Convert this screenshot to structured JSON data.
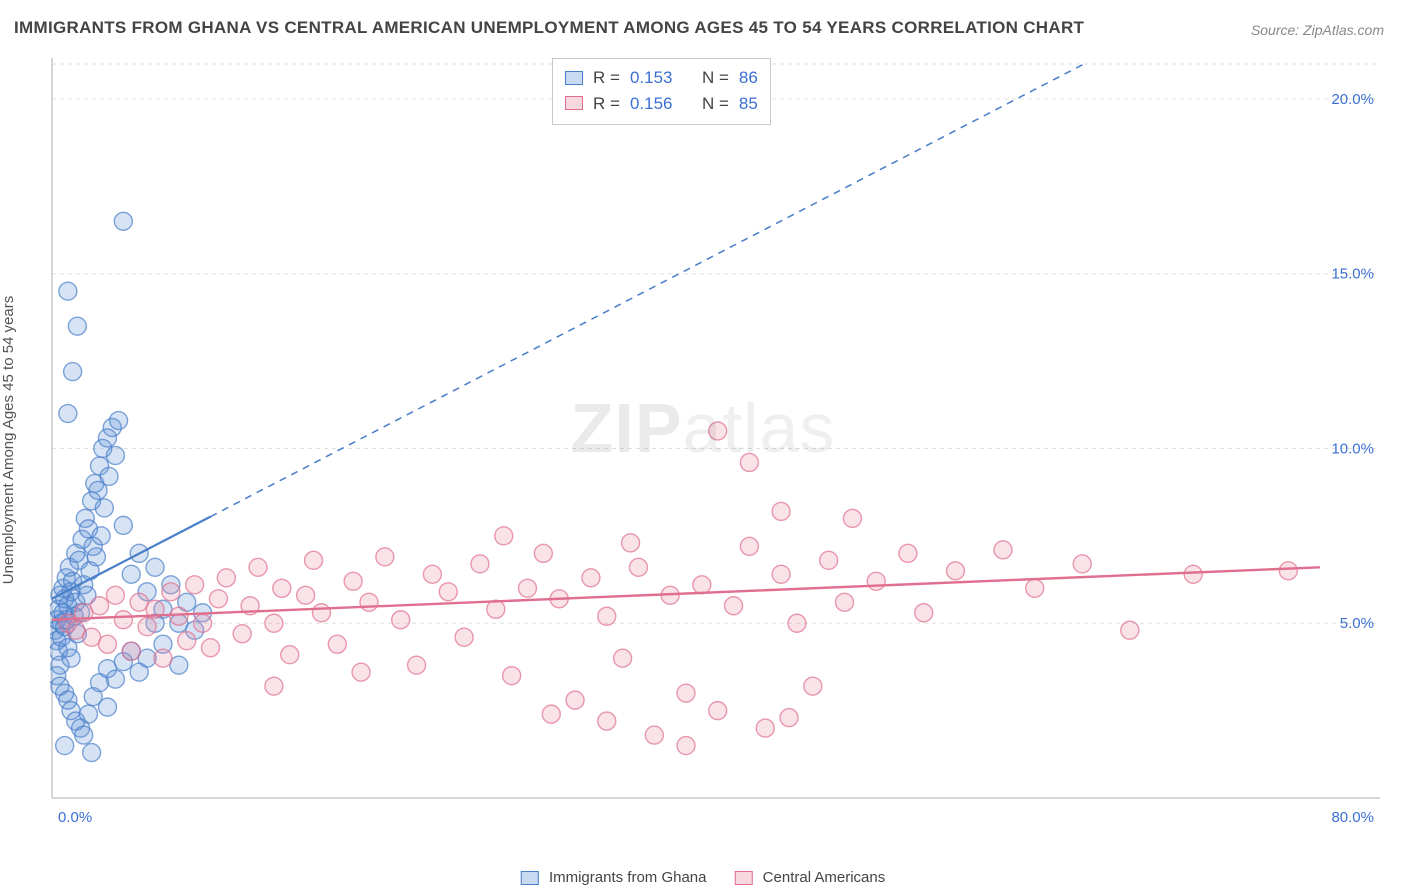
{
  "title": "IMMIGRANTS FROM GHANA VS CENTRAL AMERICAN UNEMPLOYMENT AMONG AGES 45 TO 54 YEARS CORRELATION CHART",
  "source": "Source: ZipAtlas.com",
  "ylabel": "Unemployment Among Ages 45 to 54 years",
  "watermark_a": "ZIP",
  "watermark_b": "atlas",
  "chart": {
    "type": "scatter",
    "background_color": "#ffffff",
    "grid_color": "#e0e0e0",
    "axis_color": "#c9c9c9",
    "tick_label_color": "#3b6fd4",
    "xlim": [
      0,
      80
    ],
    "ylim": [
      0,
      21
    ],
    "y_ticks": [
      5,
      10,
      15,
      20
    ],
    "y_tick_labels": [
      "5.0%",
      "10.0%",
      "15.0%",
      "20.0%"
    ],
    "x_ticks": [
      0,
      80
    ],
    "x_tick_labels": [
      "0.0%",
      "80.0%"
    ],
    "marker_radius": 9,
    "marker_fill_opacity": 0.25,
    "marker_stroke_width": 1.4,
    "series": [
      {
        "name": "Immigrants from Ghana",
        "color": "#5a8fd6",
        "stroke": "#4a7fc9",
        "trend": {
          "x1": 0,
          "y1": 5.7,
          "x2": 80,
          "y2": 24.5,
          "solid_until_x": 10,
          "width": 2.2
        },
        "R": "0.153",
        "N": "86",
        "points": [
          [
            0.2,
            4.8
          ],
          [
            0.3,
            5.1
          ],
          [
            0.3,
            4.5
          ],
          [
            0.4,
            5.4
          ],
          [
            0.4,
            4.2
          ],
          [
            0.5,
            5.8
          ],
          [
            0.5,
            3.8
          ],
          [
            0.6,
            5.0
          ],
          [
            0.6,
            4.6
          ],
          [
            0.7,
            6.0
          ],
          [
            0.7,
            5.3
          ],
          [
            0.8,
            5.7
          ],
          [
            0.8,
            4.9
          ],
          [
            0.9,
            6.3
          ],
          [
            0.9,
            5.1
          ],
          [
            1.0,
            5.5
          ],
          [
            1.0,
            4.3
          ],
          [
            1.1,
            6.6
          ],
          [
            1.2,
            5.9
          ],
          [
            1.2,
            4.0
          ],
          [
            1.3,
            6.2
          ],
          [
            1.4,
            5.2
          ],
          [
            1.5,
            7.0
          ],
          [
            1.5,
            5.6
          ],
          [
            1.6,
            4.7
          ],
          [
            1.7,
            6.8
          ],
          [
            1.8,
            5.3
          ],
          [
            1.9,
            7.4
          ],
          [
            2.0,
            6.1
          ],
          [
            2.1,
            8.0
          ],
          [
            2.2,
            5.8
          ],
          [
            2.3,
            7.7
          ],
          [
            2.4,
            6.5
          ],
          [
            2.5,
            8.5
          ],
          [
            2.6,
            7.2
          ],
          [
            2.7,
            9.0
          ],
          [
            2.8,
            6.9
          ],
          [
            2.9,
            8.8
          ],
          [
            3.0,
            9.5
          ],
          [
            3.1,
            7.5
          ],
          [
            3.2,
            10.0
          ],
          [
            3.3,
            8.3
          ],
          [
            3.5,
            10.3
          ],
          [
            3.6,
            9.2
          ],
          [
            3.8,
            10.6
          ],
          [
            4.0,
            9.8
          ],
          [
            4.2,
            10.8
          ],
          [
            4.5,
            7.8
          ],
          [
            5.0,
            6.4
          ],
          [
            5.5,
            7.0
          ],
          [
            6.0,
            5.9
          ],
          [
            6.5,
            6.6
          ],
          [
            7.0,
            5.4
          ],
          [
            7.5,
            6.1
          ],
          [
            8.0,
            5.0
          ],
          [
            8.5,
            5.6
          ],
          [
            9.0,
            4.8
          ],
          [
            0.3,
            3.5
          ],
          [
            0.5,
            3.2
          ],
          [
            0.8,
            3.0
          ],
          [
            1.0,
            2.8
          ],
          [
            1.2,
            2.5
          ],
          [
            1.5,
            2.2
          ],
          [
            1.8,
            2.0
          ],
          [
            2.0,
            1.8
          ],
          [
            2.3,
            2.4
          ],
          [
            2.6,
            2.9
          ],
          [
            3.0,
            3.3
          ],
          [
            3.5,
            3.7
          ],
          [
            4.0,
            3.4
          ],
          [
            4.5,
            3.9
          ],
          [
            5.0,
            4.2
          ],
          [
            5.5,
            3.6
          ],
          [
            6.0,
            4.0
          ],
          [
            7.0,
            4.4
          ],
          [
            8.0,
            3.8
          ],
          [
            1.0,
            11.0
          ],
          [
            1.3,
            12.2
          ],
          [
            1.6,
            13.5
          ],
          [
            1.0,
            14.5
          ],
          [
            0.8,
            1.5
          ],
          [
            2.5,
            1.3
          ],
          [
            3.5,
            2.6
          ],
          [
            4.5,
            16.5
          ],
          [
            6.5,
            5.0
          ],
          [
            9.5,
            5.3
          ]
        ]
      },
      {
        "name": "Central Americans",
        "color": "#e88ba3",
        "stroke": "#e06f8f",
        "trend": {
          "x1": 0,
          "y1": 5.1,
          "x2": 80,
          "y2": 6.6,
          "solid_until_x": 80,
          "width": 2.4
        },
        "R": "0.156",
        "N": "85",
        "points": [
          [
            1.0,
            5.0
          ],
          [
            1.5,
            4.8
          ],
          [
            2.0,
            5.3
          ],
          [
            2.5,
            4.6
          ],
          [
            3.0,
            5.5
          ],
          [
            3.5,
            4.4
          ],
          [
            4.0,
            5.8
          ],
          [
            4.5,
            5.1
          ],
          [
            5.0,
            4.2
          ],
          [
            5.5,
            5.6
          ],
          [
            6.0,
            4.9
          ],
          [
            6.5,
            5.4
          ],
          [
            7.0,
            4.0
          ],
          [
            7.5,
            5.9
          ],
          [
            8.0,
            5.2
          ],
          [
            8.5,
            4.5
          ],
          [
            9.0,
            6.1
          ],
          [
            9.5,
            5.0
          ],
          [
            10.0,
            4.3
          ],
          [
            10.5,
            5.7
          ],
          [
            11.0,
            6.3
          ],
          [
            12.0,
            4.7
          ],
          [
            12.5,
            5.5
          ],
          [
            13.0,
            6.6
          ],
          [
            14.0,
            5.0
          ],
          [
            14.5,
            6.0
          ],
          [
            15.0,
            4.1
          ],
          [
            16.0,
            5.8
          ],
          [
            16.5,
            6.8
          ],
          [
            17.0,
            5.3
          ],
          [
            18.0,
            4.4
          ],
          [
            19.0,
            6.2
          ],
          [
            20.0,
            5.6
          ],
          [
            21.0,
            6.9
          ],
          [
            22.0,
            5.1
          ],
          [
            23.0,
            3.8
          ],
          [
            24.0,
            6.4
          ],
          [
            25.0,
            5.9
          ],
          [
            26.0,
            4.6
          ],
          [
            27.0,
            6.7
          ],
          [
            28.0,
            5.4
          ],
          [
            29.0,
            3.5
          ],
          [
            30.0,
            6.0
          ],
          [
            31.0,
            7.0
          ],
          [
            32.0,
            5.7
          ],
          [
            33.0,
            2.8
          ],
          [
            34.0,
            6.3
          ],
          [
            35.0,
            5.2
          ],
          [
            36.0,
            4.0
          ],
          [
            37.0,
            6.6
          ],
          [
            38.0,
            1.8
          ],
          [
            39.0,
            5.8
          ],
          [
            40.0,
            3.0
          ],
          [
            41.0,
            6.1
          ],
          [
            42.0,
            2.5
          ],
          [
            43.0,
            5.5
          ],
          [
            44.0,
            7.2
          ],
          [
            45.0,
            2.0
          ],
          [
            46.0,
            6.4
          ],
          [
            47.0,
            5.0
          ],
          [
            48.0,
            3.2
          ],
          [
            49.0,
            6.8
          ],
          [
            50.0,
            5.6
          ],
          [
            52.0,
            6.2
          ],
          [
            54.0,
            7.0
          ],
          [
            55.0,
            5.3
          ],
          [
            57.0,
            6.5
          ],
          [
            60.0,
            7.1
          ],
          [
            62.0,
            6.0
          ],
          [
            65.0,
            6.7
          ],
          [
            68.0,
            4.8
          ],
          [
            72.0,
            6.4
          ],
          [
            78.0,
            6.5
          ],
          [
            42.0,
            10.5
          ],
          [
            44.0,
            9.6
          ],
          [
            46.0,
            8.2
          ],
          [
            35.0,
            2.2
          ],
          [
            40.0,
            1.5
          ],
          [
            46.5,
            2.3
          ],
          [
            28.5,
            7.5
          ],
          [
            31.5,
            2.4
          ],
          [
            36.5,
            7.3
          ],
          [
            50.5,
            8.0
          ],
          [
            14.0,
            3.2
          ],
          [
            19.5,
            3.6
          ]
        ]
      }
    ]
  },
  "stats_labels": {
    "R": "R =",
    "N": "N ="
  },
  "legend_labels": {
    "ghana": "Immigrants from Ghana",
    "central": "Central Americans"
  }
}
